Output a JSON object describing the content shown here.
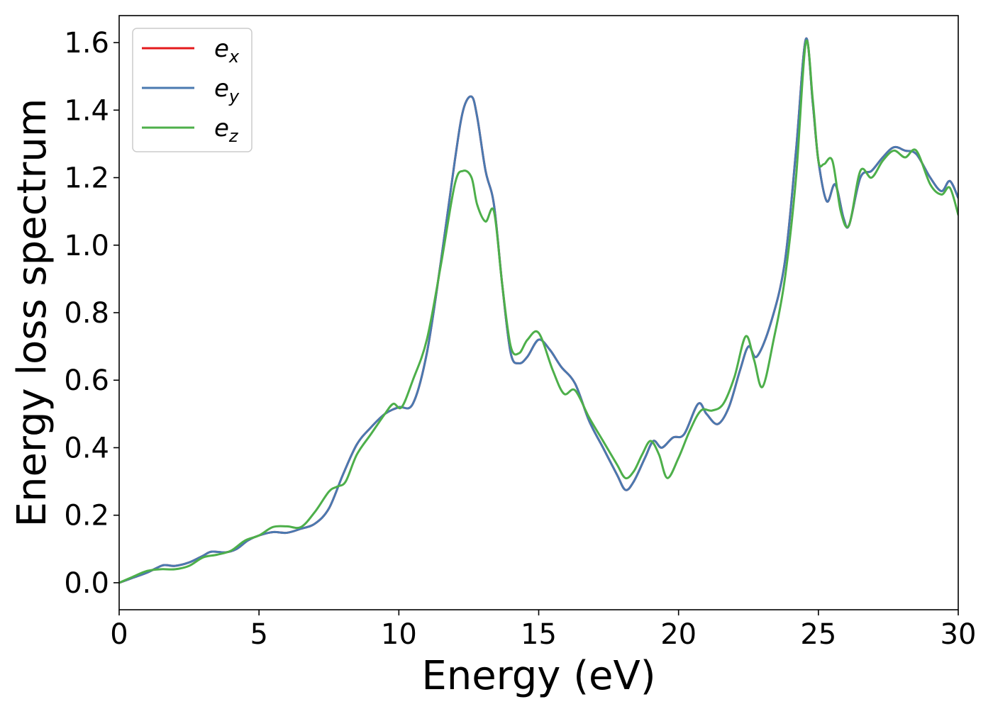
{
  "chart_data": {
    "type": "line",
    "title": "",
    "xlabel": "Energy (eV)",
    "ylabel": "Energy loss spectrum",
    "xlim": [
      0,
      30
    ],
    "ylim": [
      -0.08,
      1.68
    ],
    "xticks": [
      "0",
      "5",
      "10",
      "15",
      "20",
      "25",
      "30"
    ],
    "xtick_values": [
      0,
      5,
      10,
      15,
      20,
      25,
      30
    ],
    "yticks": [
      "0.0",
      "0.2",
      "0.4",
      "0.6",
      "0.8",
      "1.0",
      "1.2",
      "1.4",
      "1.6"
    ],
    "ytick_values": [
      0,
      0.2,
      0.4,
      0.6,
      0.8,
      1.0,
      1.2,
      1.4,
      1.6
    ],
    "grid": false,
    "legend_position": "top-left",
    "series": [
      {
        "name": "e_x",
        "legend_base": "e",
        "legend_sub": "x",
        "color": "#e41a1c",
        "x": [
          0,
          0.5,
          1,
          1.5,
          1.7,
          2,
          2.5,
          3,
          3.3,
          3.8,
          4.2,
          4.6,
          5,
          5.5,
          6,
          6.5,
          7,
          7.5,
          8,
          8.5,
          9,
          9.5,
          10,
          10.5,
          11,
          11.5,
          12,
          12.3,
          12.6,
          12.8,
          13.1,
          13.4,
          13.7,
          14,
          14.3,
          14.6,
          15,
          15.4,
          15.8,
          16.3,
          16.8,
          17.3,
          17.8,
          18.1,
          18.4,
          18.8,
          19.1,
          19.4,
          19.8,
          20.2,
          20.7,
          21,
          21.4,
          21.8,
          22.2,
          22.5,
          22.8,
          23.3,
          23.8,
          24.2,
          24.55,
          24.8,
          25,
          25.3,
          25.6,
          25.9,
          26.1,
          26.5,
          26.9,
          27.3,
          27.7,
          28.1,
          28.5,
          29,
          29.4,
          29.7,
          30
        ],
        "y": [
          0,
          0.015,
          0.03,
          0.05,
          0.052,
          0.05,
          0.06,
          0.08,
          0.092,
          0.09,
          0.1,
          0.125,
          0.14,
          0.15,
          0.148,
          0.16,
          0.175,
          0.22,
          0.32,
          0.41,
          0.46,
          0.5,
          0.52,
          0.53,
          0.68,
          0.95,
          1.25,
          1.4,
          1.44,
          1.38,
          1.22,
          1.12,
          0.88,
          0.68,
          0.65,
          0.67,
          0.72,
          0.69,
          0.64,
          0.59,
          0.48,
          0.4,
          0.32,
          0.275,
          0.3,
          0.37,
          0.42,
          0.4,
          0.43,
          0.44,
          0.53,
          0.5,
          0.47,
          0.52,
          0.63,
          0.7,
          0.67,
          0.77,
          0.95,
          1.28,
          1.61,
          1.42,
          1.25,
          1.13,
          1.18,
          1.08,
          1.06,
          1.2,
          1.22,
          1.26,
          1.29,
          1.28,
          1.27,
          1.2,
          1.16,
          1.19,
          1.14
        ]
      },
      {
        "name": "e_y",
        "legend_base": "e",
        "legend_sub": "y",
        "color": "#4a79b0",
        "x": [
          0,
          0.5,
          1,
          1.5,
          1.7,
          2,
          2.5,
          3,
          3.3,
          3.8,
          4.2,
          4.6,
          5,
          5.5,
          6,
          6.5,
          7,
          7.5,
          8,
          8.5,
          9,
          9.5,
          10,
          10.5,
          11,
          11.5,
          12,
          12.3,
          12.6,
          12.8,
          13.1,
          13.4,
          13.7,
          14,
          14.3,
          14.6,
          15,
          15.4,
          15.8,
          16.3,
          16.8,
          17.3,
          17.8,
          18.1,
          18.4,
          18.8,
          19.1,
          19.4,
          19.8,
          20.2,
          20.7,
          21,
          21.4,
          21.8,
          22.2,
          22.5,
          22.8,
          23.3,
          23.8,
          24.2,
          24.55,
          24.8,
          25,
          25.3,
          25.6,
          25.9,
          26.1,
          26.5,
          26.9,
          27.3,
          27.7,
          28.1,
          28.5,
          29,
          29.4,
          29.7,
          30
        ],
        "y": [
          0,
          0.015,
          0.03,
          0.05,
          0.052,
          0.05,
          0.06,
          0.08,
          0.092,
          0.09,
          0.1,
          0.125,
          0.14,
          0.15,
          0.148,
          0.16,
          0.175,
          0.22,
          0.32,
          0.41,
          0.46,
          0.5,
          0.52,
          0.53,
          0.68,
          0.95,
          1.25,
          1.4,
          1.44,
          1.38,
          1.22,
          1.12,
          0.88,
          0.68,
          0.65,
          0.67,
          0.72,
          0.69,
          0.64,
          0.59,
          0.48,
          0.4,
          0.32,
          0.275,
          0.3,
          0.37,
          0.42,
          0.4,
          0.43,
          0.44,
          0.53,
          0.5,
          0.47,
          0.52,
          0.63,
          0.7,
          0.67,
          0.77,
          0.95,
          1.28,
          1.61,
          1.42,
          1.25,
          1.13,
          1.18,
          1.08,
          1.06,
          1.2,
          1.22,
          1.26,
          1.29,
          1.28,
          1.27,
          1.2,
          1.16,
          1.19,
          1.14
        ]
      },
      {
        "name": "e_z",
        "legend_base": "e",
        "legend_sub": "z",
        "color": "#4daf4a",
        "x": [
          0,
          0.5,
          1,
          1.5,
          2,
          2.5,
          3,
          3.5,
          4,
          4.5,
          5,
          5.5,
          6,
          6.5,
          7,
          7.5,
          7.8,
          8.1,
          8.5,
          9,
          9.5,
          9.8,
          10.1,
          10.5,
          11,
          11.5,
          12,
          12.3,
          12.6,
          12.8,
          13.1,
          13.4,
          13.7,
          14,
          14.3,
          14.6,
          15,
          15.5,
          15.9,
          16.3,
          16.8,
          17.3,
          17.8,
          18.1,
          18.4,
          18.7,
          19,
          19.3,
          19.6,
          20,
          20.4,
          20.8,
          21.2,
          21.6,
          22,
          22.4,
          22.7,
          23,
          23.4,
          23.8,
          24.2,
          24.55,
          24.8,
          25,
          25.2,
          25.5,
          25.8,
          26.1,
          26.5,
          26.9,
          27.3,
          27.7,
          28.1,
          28.5,
          29,
          29.4,
          29.7,
          30
        ],
        "y": [
          0,
          0.018,
          0.035,
          0.04,
          0.04,
          0.05,
          0.075,
          0.083,
          0.095,
          0.125,
          0.14,
          0.165,
          0.167,
          0.165,
          0.21,
          0.27,
          0.285,
          0.3,
          0.38,
          0.44,
          0.5,
          0.53,
          0.52,
          0.6,
          0.72,
          0.94,
          1.18,
          1.22,
          1.2,
          1.12,
          1.07,
          1.1,
          0.88,
          0.7,
          0.68,
          0.72,
          0.74,
          0.63,
          0.56,
          0.57,
          0.49,
          0.42,
          0.35,
          0.31,
          0.33,
          0.38,
          0.42,
          0.38,
          0.31,
          0.37,
          0.45,
          0.51,
          0.51,
          0.53,
          0.61,
          0.73,
          0.66,
          0.58,
          0.72,
          0.9,
          1.2,
          1.6,
          1.43,
          1.25,
          1.24,
          1.25,
          1.1,
          1.06,
          1.22,
          1.2,
          1.25,
          1.28,
          1.26,
          1.28,
          1.18,
          1.15,
          1.17,
          1.09
        ]
      }
    ]
  }
}
